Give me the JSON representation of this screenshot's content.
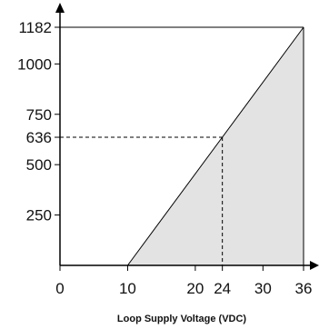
{
  "chart_data": {
    "type": "area",
    "title": "",
    "xlabel": "Loop Supply Voltage (VDC)",
    "ylabel": "",
    "xlim": [
      0,
      36
    ],
    "ylim": [
      0,
      1182
    ],
    "x_ticks": [
      "0",
      "10",
      "20",
      "24",
      "30",
      "36"
    ],
    "y_ticks": [
      "250",
      "500",
      "636",
      "750",
      "1000",
      "1182"
    ],
    "series": [
      {
        "x": [
          10,
          36
        ],
        "y": [
          0,
          1182
        ]
      }
    ],
    "reference_point": {
      "x": 24,
      "y": 636
    },
    "fill_color": "#e3e3e3",
    "line_color": "#000000",
    "grid": false
  }
}
